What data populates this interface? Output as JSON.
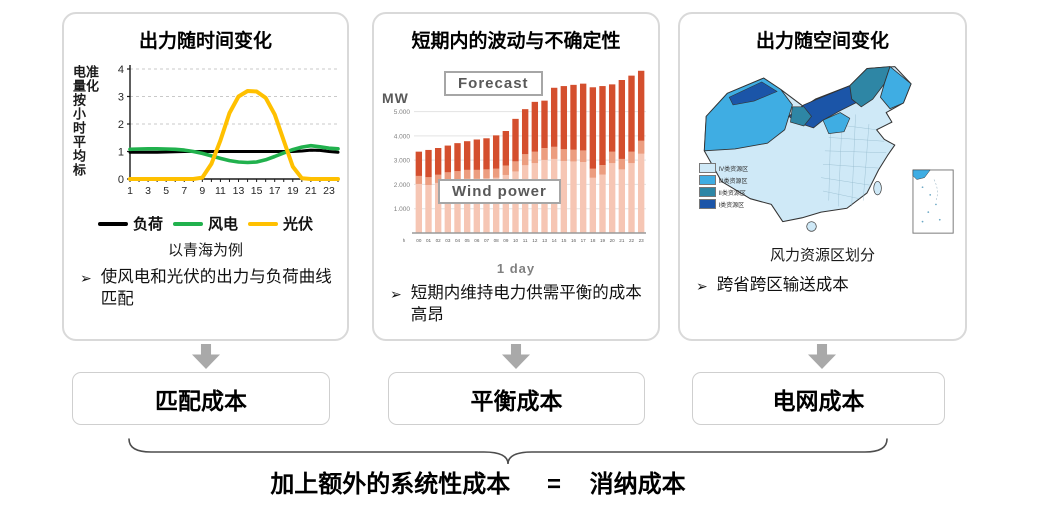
{
  "bullet_marker": "➢",
  "panels": [
    {
      "title": "出力随时间变化",
      "caption": "以青海为例",
      "bullet": "使风电和光伏的出力与负荷曲线匹配",
      "cost_label": "匹配成本"
    },
    {
      "title": "短期内的波动与不确定性",
      "bullet": "短期内维持电力供需平衡的成本高昂",
      "cost_label": "平衡成本"
    },
    {
      "title": "出力随空间变化",
      "caption": "风力资源区划分",
      "bullet": "跨省跨区输送成本",
      "cost_label": "电网成本"
    }
  ],
  "equation": {
    "lhs": "加上额外的系统性成本",
    "eq": "=",
    "rhs": "消纳成本"
  },
  "colors": {
    "panel_border": "#d9d9d9",
    "arrow_gray": "#a9a9a9",
    "load_black": "#000000",
    "wind_green": "#21b14d",
    "solar_yellow": "#ffc000",
    "bar_dark": "#d44f2e",
    "bar_mid": "#ec9d7f",
    "bar_light": "#f6c6b4",
    "map_blues": [
      "#cfe9f7",
      "#3fade3",
      "#2e86a5",
      "#1b55a8"
    ]
  },
  "chart_data": [
    {
      "type": "line",
      "title": "出力随时间变化",
      "ylabel": "电量按小时平均标准化",
      "ylim": [
        0,
        4
      ],
      "yticks": [
        0,
        1,
        2,
        3,
        4
      ],
      "x": [
        1,
        2,
        3,
        4,
        5,
        6,
        7,
        8,
        9,
        10,
        11,
        12,
        13,
        14,
        15,
        16,
        17,
        18,
        19,
        20,
        21,
        22,
        23,
        24
      ],
      "xticks": [
        1,
        3,
        5,
        7,
        9,
        11,
        13,
        15,
        17,
        19,
        21,
        23
      ],
      "grid": "dashed horizontal",
      "legend_position": "bottom",
      "series": [
        {
          "name": "负荷",
          "color": "#000000",
          "values": [
            0.97,
            0.97,
            0.97,
            0.97,
            0.98,
            0.99,
            1.0,
            1.0,
            1.0,
            1.0,
            1.0,
            1.0,
            1.0,
            1.0,
            1.0,
            1.0,
            1.0,
            1.0,
            1.0,
            1.02,
            1.05,
            1.04,
            1.0,
            0.97
          ]
        },
        {
          "name": "风电",
          "color": "#21b14d",
          "values": [
            1.08,
            1.09,
            1.1,
            1.1,
            1.09,
            1.08,
            1.05,
            1.0,
            0.93,
            0.84,
            0.75,
            0.67,
            0.62,
            0.6,
            0.62,
            0.7,
            0.82,
            0.95,
            1.07,
            1.16,
            1.21,
            1.17,
            1.12,
            1.1
          ]
        },
        {
          "name": "光伏",
          "color": "#ffc000",
          "values": [
            0,
            0,
            0,
            0,
            0,
            0,
            0,
            0,
            0.05,
            0.55,
            1.4,
            2.4,
            3.0,
            3.2,
            3.18,
            2.95,
            2.35,
            1.4,
            0.45,
            0.03,
            0,
            0,
            0,
            0
          ]
        }
      ]
    },
    {
      "type": "bar",
      "stacked": true,
      "title": "短期内的波动与不确定性",
      "unit_label": "MW",
      "xlabel": "1 day",
      "x_prefix": "h",
      "categories": [
        "00",
        "01",
        "02",
        "03",
        "04",
        "05",
        "06",
        "07",
        "08",
        "09",
        "10",
        "11",
        "12",
        "13",
        "14",
        "15",
        "16",
        "17",
        "18",
        "19",
        "20",
        "21",
        "22",
        "23"
      ],
      "ylim": [
        0,
        7000
      ],
      "yticks": [
        1000,
        2000,
        3000,
        4000,
        5000
      ],
      "ytick_labels": [
        "1.000",
        "2.000",
        "3.000",
        "4.000",
        "5.000"
      ],
      "annotations": [
        "Forecast",
        "Wind power"
      ],
      "series": [
        {
          "name": "Wind power",
          "color": "#f6c6b4",
          "values": [
            2350,
            2300,
            2400,
            2500,
            2550,
            2600,
            2600,
            2620,
            2650,
            2780,
            2950,
            3250,
            3350,
            3500,
            3550,
            3450,
            3430,
            3400,
            2650,
            2800,
            3350,
            3050,
            3350,
            3800
          ]
        },
        {
          "name": "Forecast (total)",
          "color": "#d44f2e",
          "values": [
            3350,
            3420,
            3500,
            3600,
            3700,
            3780,
            3850,
            3900,
            4020,
            4200,
            4700,
            5100,
            5400,
            5450,
            5980,
            6050,
            6100,
            6150,
            6000,
            6050,
            6120,
            6300,
            6480,
            6680
          ]
        }
      ]
    },
    {
      "type": "map",
      "title": "风力资源区划分",
      "region": "中国",
      "legend": [
        "IV类资源区",
        "III类资源区",
        "II类资源区",
        "I类资源区"
      ],
      "legend_colors": [
        "#cfe9f7",
        "#3fade3",
        "#2e86a5",
        "#1b55a8"
      ]
    }
  ]
}
